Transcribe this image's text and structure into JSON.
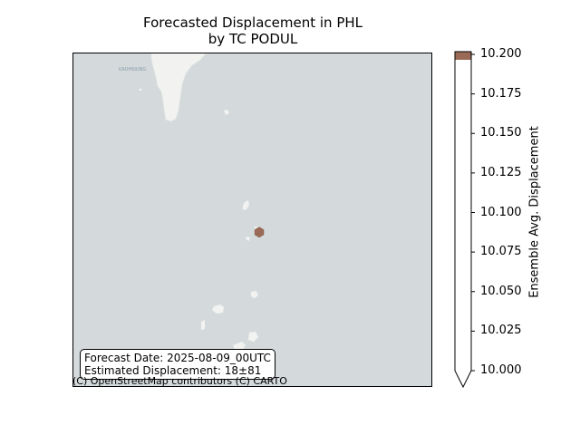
{
  "title_line1": "Forecasted Displacement in PHL",
  "title_line2": "by TC PODUL",
  "map": {
    "place_label": "KAOHSIUNG",
    "attribution": "(C) OpenStreetMap contributors (C) CARTO",
    "water_color": "#d4dadc",
    "land_color": "#f2f3f0",
    "marker_color": "#9a6a57"
  },
  "info_box": {
    "forecast_date": "Forecast Date: 2025-08-09_00UTC",
    "estimated_displacement": "Estimated Displacement: 18±81"
  },
  "colorbar": {
    "label": "Ensemble Avg. Displacement",
    "min": 10.0,
    "max": 10.2,
    "ticks": [
      "10.000",
      "10.025",
      "10.050",
      "10.075",
      "10.100",
      "10.125",
      "10.150",
      "10.175",
      "10.200"
    ],
    "top_color": "#9a6a57",
    "fill_color": "#ffffff",
    "extend_min": true
  }
}
